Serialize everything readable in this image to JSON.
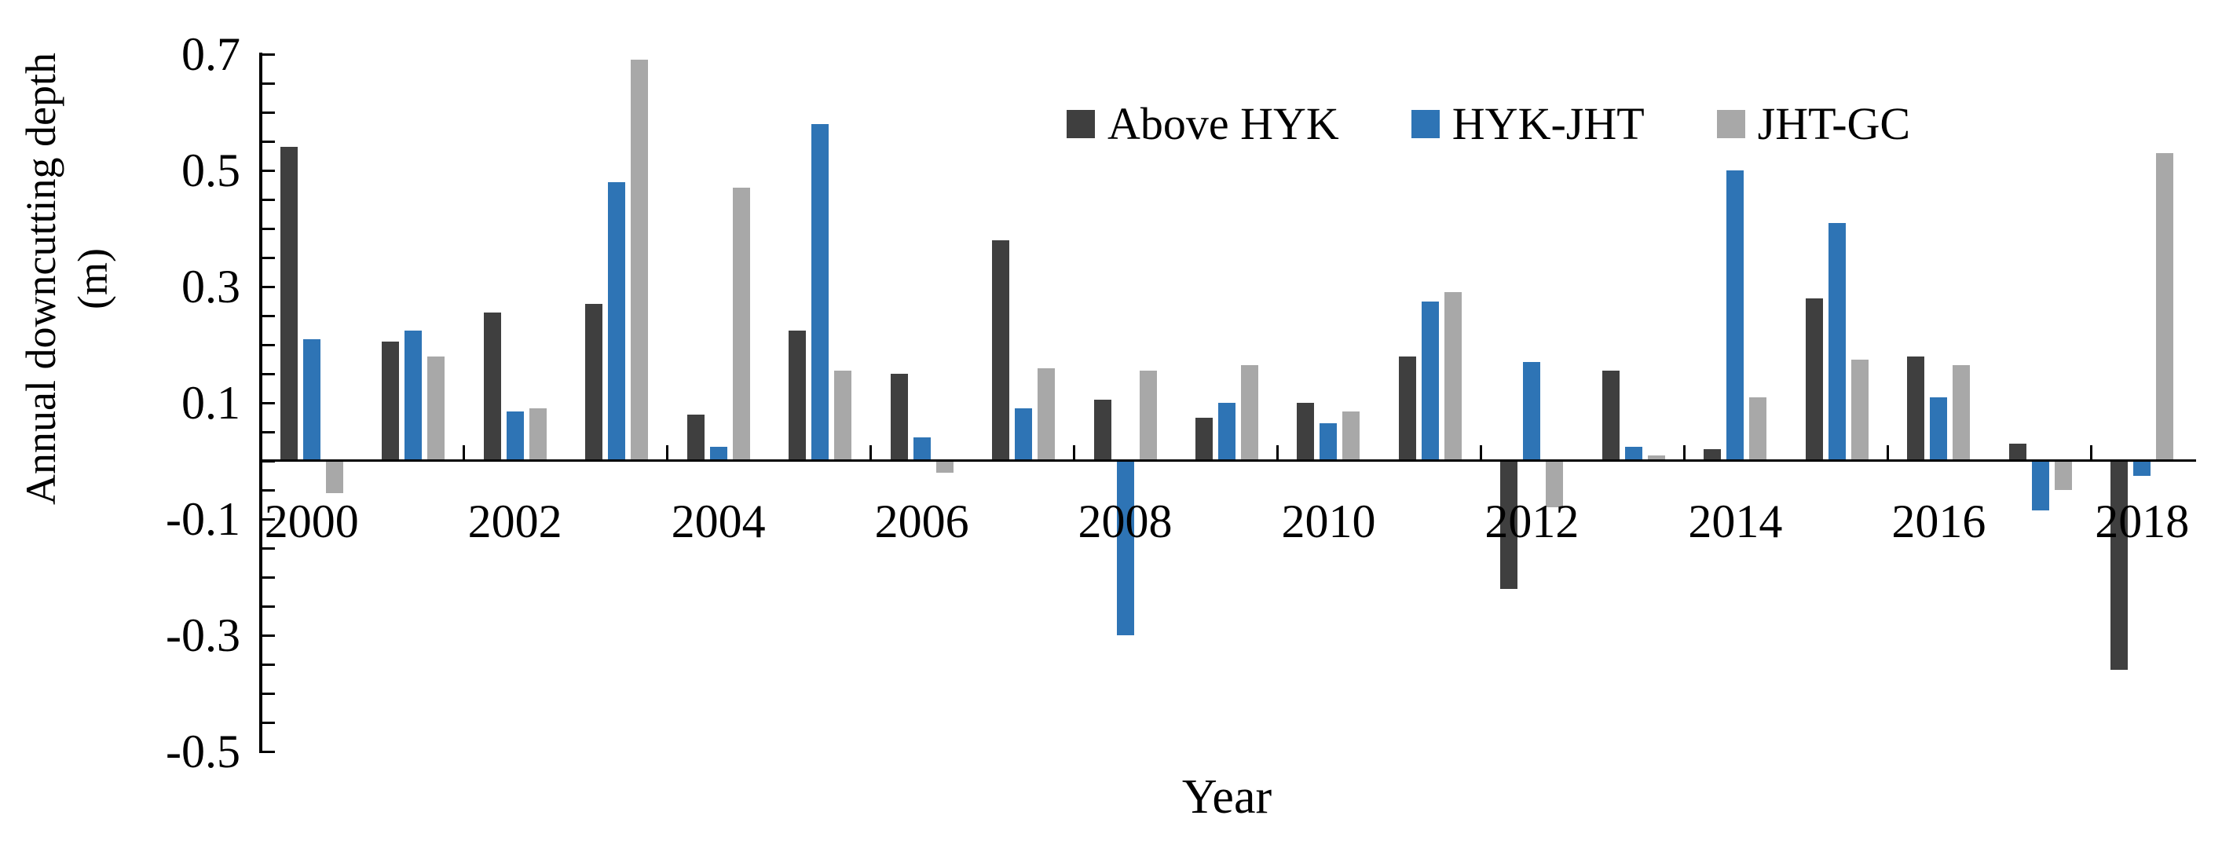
{
  "chart_data": {
    "type": "bar",
    "title": "",
    "xlabel": "Year",
    "ylabel": "Annual downcutting depth (m)",
    "ylabel_line1": "Annual downcutting depth",
    "ylabel_line2": "(m)",
    "ylim": [
      -0.5,
      0.7
    ],
    "ytick_labels": [
      "0.7",
      "0.5",
      "0.3",
      "0.1",
      "-0.1",
      "-0.3",
      "-0.5"
    ],
    "ytick_minor_step": 0.05,
    "grid": "off",
    "legend_position": "top-center-inside",
    "categories": [
      2000,
      2001,
      2002,
      2003,
      2004,
      2005,
      2006,
      2007,
      2008,
      2009,
      2010,
      2011,
      2012,
      2013,
      2014,
      2015,
      2016,
      2017,
      2018
    ],
    "xtick_labels": [
      "2000",
      "2002",
      "2004",
      "2006",
      "2008",
      "2010",
      "2012",
      "2014",
      "2016",
      "2018"
    ],
    "series": [
      {
        "name": "Above HYK",
        "color": "#3f3f3f",
        "values": [
          0.54,
          0.205,
          0.255,
          0.27,
          0.08,
          0.225,
          0.15,
          0.38,
          0.105,
          0.075,
          0.1,
          0.18,
          -0.22,
          0.155,
          0.02,
          0.28,
          0.18,
          0.03,
          -0.36
        ]
      },
      {
        "name": "HYK-JHT",
        "color": "#2e74b5",
        "values": [
          0.21,
          0.225,
          0.085,
          0.48,
          0.025,
          0.58,
          0.04,
          0.09,
          -0.3,
          0.1,
          0.065,
          0.275,
          0.17,
          0.025,
          0.5,
          0.41,
          0.11,
          -0.085,
          -0.025
        ]
      },
      {
        "name": "JHT-GC",
        "color": "#a8a8a8",
        "values": [
          -0.055,
          0.18,
          0.09,
          0.69,
          0.47,
          0.155,
          -0.02,
          0.16,
          0.155,
          0.165,
          0.085,
          0.29,
          -0.08,
          0.01,
          0.11,
          0.175,
          0.165,
          -0.05,
          0.53
        ]
      }
    ],
    "axis_color": "#000000",
    "text_color": "#000000"
  }
}
